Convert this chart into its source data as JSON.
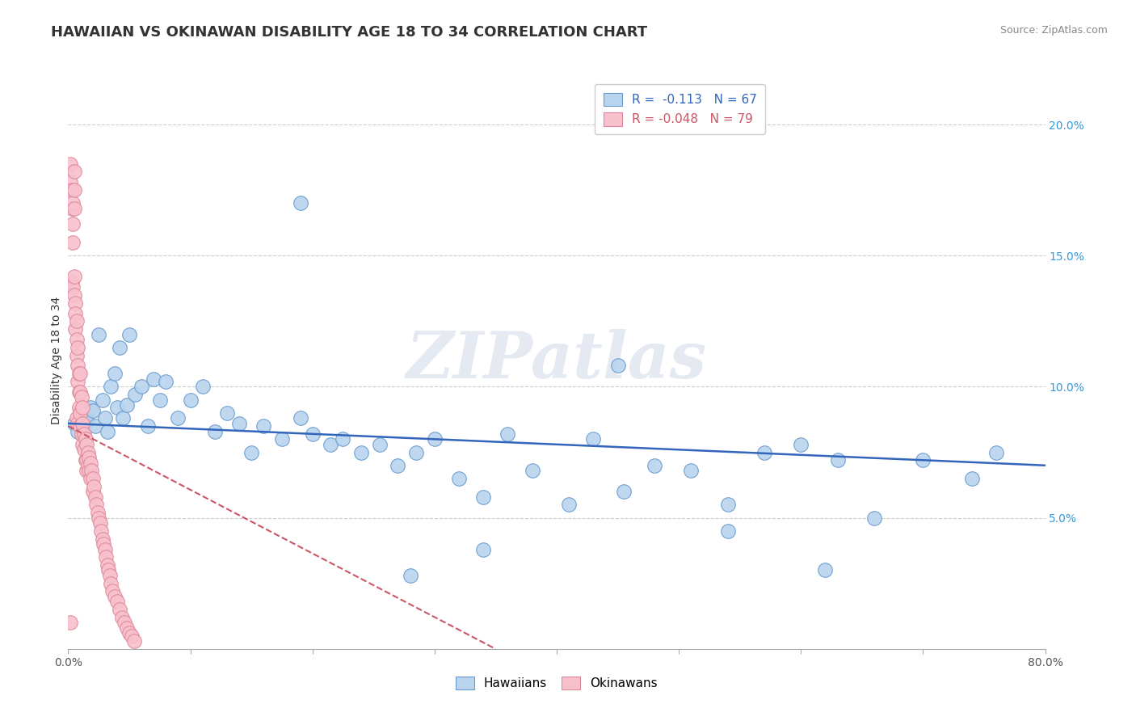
{
  "title": "HAWAIIAN VS OKINAWAN DISABILITY AGE 18 TO 34 CORRELATION CHART",
  "source_text": "Source: ZipAtlas.com",
  "ylabel": "Disability Age 18 to 34",
  "watermark": "ZIPatlas",
  "hawaiian_x": [
    0.005,
    0.008,
    0.01,
    0.012,
    0.015,
    0.015,
    0.018,
    0.02,
    0.022,
    0.025,
    0.028,
    0.03,
    0.032,
    0.035,
    0.038,
    0.04,
    0.042,
    0.045,
    0.048,
    0.05,
    0.055,
    0.06,
    0.065,
    0.07,
    0.075,
    0.08,
    0.09,
    0.1,
    0.11,
    0.12,
    0.13,
    0.14,
    0.15,
    0.16,
    0.175,
    0.19,
    0.2,
    0.215,
    0.225,
    0.24,
    0.255,
    0.27,
    0.285,
    0.3,
    0.32,
    0.34,
    0.36,
    0.38,
    0.41,
    0.43,
    0.455,
    0.48,
    0.51,
    0.54,
    0.57,
    0.6,
    0.63,
    0.66,
    0.7,
    0.74,
    0.76,
    0.34,
    0.28,
    0.19,
    0.45,
    0.54,
    0.62
  ],
  "hawaiian_y": [
    0.086,
    0.083,
    0.088,
    0.082,
    0.09,
    0.087,
    0.092,
    0.091,
    0.085,
    0.12,
    0.095,
    0.088,
    0.083,
    0.1,
    0.105,
    0.092,
    0.115,
    0.088,
    0.093,
    0.12,
    0.097,
    0.1,
    0.085,
    0.103,
    0.095,
    0.102,
    0.088,
    0.095,
    0.1,
    0.083,
    0.09,
    0.086,
    0.075,
    0.085,
    0.08,
    0.088,
    0.082,
    0.078,
    0.08,
    0.075,
    0.078,
    0.07,
    0.075,
    0.08,
    0.065,
    0.058,
    0.082,
    0.068,
    0.055,
    0.08,
    0.06,
    0.07,
    0.068,
    0.055,
    0.075,
    0.078,
    0.072,
    0.05,
    0.072,
    0.065,
    0.075,
    0.038,
    0.028,
    0.17,
    0.108,
    0.045,
    0.03
  ],
  "okinawan_x": [
    0.002,
    0.002,
    0.003,
    0.003,
    0.003,
    0.004,
    0.004,
    0.004,
    0.004,
    0.005,
    0.005,
    0.005,
    0.005,
    0.005,
    0.006,
    0.006,
    0.006,
    0.007,
    0.007,
    0.007,
    0.007,
    0.008,
    0.008,
    0.008,
    0.008,
    0.009,
    0.009,
    0.009,
    0.01,
    0.01,
    0.01,
    0.01,
    0.011,
    0.011,
    0.012,
    0.012,
    0.012,
    0.013,
    0.013,
    0.014,
    0.014,
    0.015,
    0.015,
    0.015,
    0.016,
    0.016,
    0.017,
    0.017,
    0.018,
    0.018,
    0.019,
    0.02,
    0.02,
    0.021,
    0.022,
    0.023,
    0.024,
    0.025,
    0.026,
    0.027,
    0.028,
    0.029,
    0.03,
    0.031,
    0.032,
    0.033,
    0.034,
    0.035,
    0.036,
    0.038,
    0.04,
    0.042,
    0.044,
    0.046,
    0.048,
    0.05,
    0.052,
    0.054,
    0.002
  ],
  "okinawan_y": [
    0.185,
    0.178,
    0.175,
    0.168,
    0.14,
    0.17,
    0.162,
    0.155,
    0.138,
    0.182,
    0.175,
    0.168,
    0.142,
    0.135,
    0.132,
    0.128,
    0.122,
    0.125,
    0.118,
    0.112,
    0.088,
    0.115,
    0.108,
    0.102,
    0.086,
    0.105,
    0.098,
    0.092,
    0.105,
    0.098,
    0.09,
    0.085,
    0.096,
    0.082,
    0.092,
    0.086,
    0.078,
    0.082,
    0.076,
    0.08,
    0.072,
    0.078,
    0.072,
    0.068,
    0.075,
    0.07,
    0.073,
    0.068,
    0.071,
    0.065,
    0.068,
    0.065,
    0.06,
    0.062,
    0.058,
    0.055,
    0.052,
    0.05,
    0.048,
    0.045,
    0.042,
    0.04,
    0.038,
    0.035,
    0.032,
    0.03,
    0.028,
    0.025,
    0.022,
    0.02,
    0.018,
    0.015,
    0.012,
    0.01,
    0.008,
    0.006,
    0.005,
    0.003,
    0.01
  ],
  "xlim": [
    0.0,
    0.8
  ],
  "ylim": [
    0.0,
    0.22
  ],
  "hawaiian_color": "#b8d4ee",
  "hawaiian_edge_color": "#6699cc",
  "okinawan_color": "#f8c0cc",
  "okinawan_edge_color": "#dd8899",
  "hawaiian_line_color": "#3366bb",
  "okinawan_line_color": "#cc5566",
  "title_fontsize": 13,
  "axis_label_fontsize": 10,
  "tick_fontsize": 10,
  "source_fontsize": 9
}
